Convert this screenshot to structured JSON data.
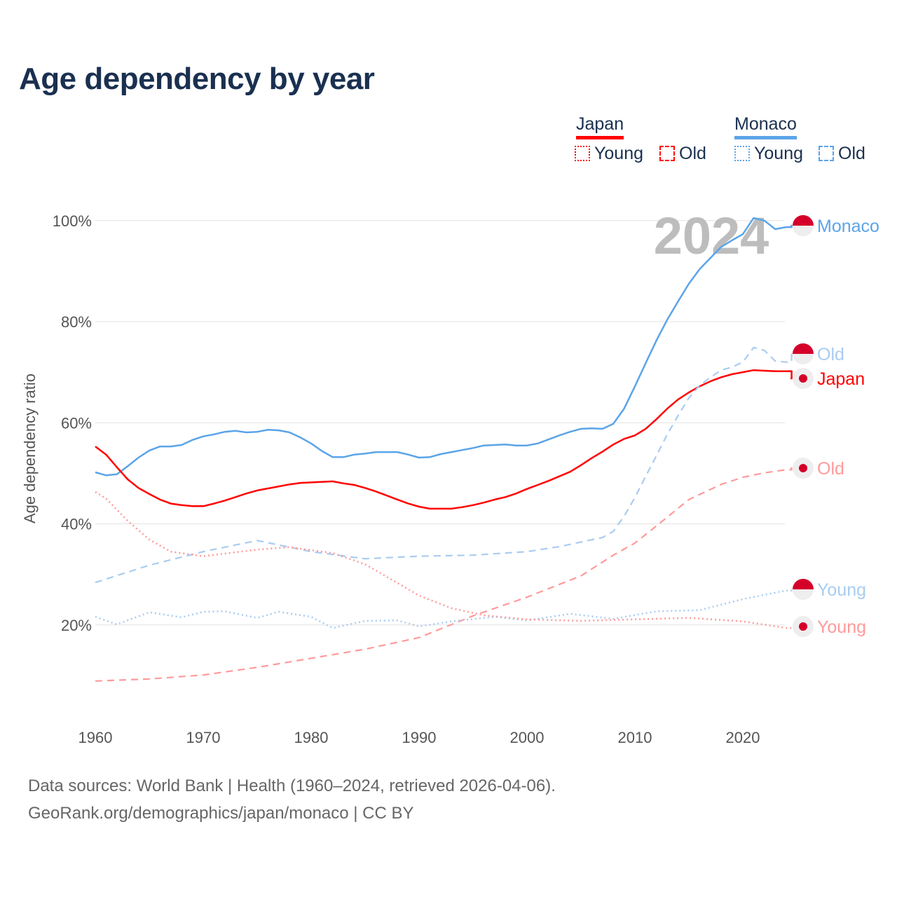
{
  "title": "Age dependency by year",
  "legend": {
    "japan": {
      "label": "Japan",
      "young": "Young",
      "old": "Old"
    },
    "monaco": {
      "label": "Monaco",
      "young": "Young",
      "old": "Old"
    }
  },
  "colors": {
    "japan": "#ff0000",
    "japan_light": "#ff9a9a",
    "monaco": "#5ba4e8",
    "monaco_light": "#a9ccf1",
    "flag_red": "#d5002a",
    "badge_bg": "#eeeeee"
  },
  "year_overlay": "2024",
  "footer": {
    "line1": "Data sources: World Bank | Health (1960–2024, retrieved 2026-04-06).",
    "line2": "GeoRank.org/demographics/japan/monaco | CC BY"
  },
  "chart_data": {
    "type": "line",
    "title": "Age dependency by year",
    "xlabel": "",
    "ylabel": "Age dependency ratio",
    "xlim": [
      1960,
      2024
    ],
    "ylim": [
      0,
      100
    ],
    "xticks": [
      "1960",
      "1970",
      "1980",
      "1990",
      "2000",
      "2010",
      "2020"
    ],
    "yticks": [
      "20%",
      "40%",
      "60%",
      "80%",
      "100%"
    ],
    "grid": true,
    "series": [
      {
        "id": "monaco_total",
        "name": "Monaco",
        "end_label": "Monaco",
        "style": "solid",
        "start": 1960,
        "values": [
          50.2,
          49.6,
          49.8,
          51.4,
          53.1,
          54.5,
          55.3,
          55.3,
          55.6,
          56.6,
          57.3,
          57.7,
          58.2,
          58.4,
          58.1,
          58.2,
          58.6,
          58.5,
          58.1,
          57.1,
          55.9,
          54.4,
          53.2,
          53.2,
          53.7,
          53.9,
          54.2,
          54.2,
          54.2,
          53.7,
          53.1,
          53.2,
          53.8,
          54.2,
          54.6,
          55.0,
          55.5,
          55.6,
          55.7,
          55.5,
          55.5,
          55.9,
          56.7,
          57.5,
          58.2,
          58.8,
          58.9,
          58.8,
          59.8,
          62.8,
          67.2,
          71.8,
          76.3,
          80.4,
          84.0,
          87.5,
          90.4,
          92.6,
          94.8,
          96.1,
          97.3,
          100.5,
          100.0,
          98.3,
          98.7
        ]
      },
      {
        "id": "japan_total",
        "name": "Japan",
        "end_label": "Japan",
        "style": "solid",
        "start": 1960,
        "values": [
          55.3,
          53.7,
          51.2,
          48.8,
          47.1,
          45.9,
          44.8,
          44.0,
          43.7,
          43.5,
          43.5,
          44.0,
          44.6,
          45.3,
          46.0,
          46.6,
          47.0,
          47.4,
          47.8,
          48.1,
          48.2,
          48.3,
          48.4,
          48.0,
          47.7,
          47.1,
          46.4,
          45.6,
          44.8,
          44.0,
          43.4,
          43.0,
          43.0,
          43.0,
          43.3,
          43.7,
          44.2,
          44.8,
          45.3,
          46.0,
          46.9,
          47.7,
          48.5,
          49.4,
          50.3,
          51.6,
          53.0,
          54.3,
          55.7,
          56.8,
          57.5,
          58.8,
          60.7,
          62.8,
          64.6,
          66.0,
          67.2,
          68.2,
          69.0,
          69.6,
          70.0,
          70.4,
          70.3,
          70.2,
          70.2
        ]
      },
      {
        "id": "monaco_old",
        "name": "Monaco Old",
        "end_label": "Old",
        "style": "dashed",
        "points": [
          [
            1960,
            28.4
          ],
          [
            1965,
            31.8
          ],
          [
            1970,
            34.5
          ],
          [
            1975,
            36.7
          ],
          [
            1980,
            34.5
          ],
          [
            1985,
            33.1
          ],
          [
            1990,
            33.6
          ],
          [
            1995,
            33.8
          ],
          [
            2000,
            34.5
          ],
          [
            2003,
            35.5
          ],
          [
            2007,
            37.3
          ],
          [
            2008,
            38.5
          ],
          [
            2009,
            41.5
          ],
          [
            2010,
            45.2
          ],
          [
            2011,
            49.4
          ],
          [
            2012,
            53.5
          ],
          [
            2013,
            57.7
          ],
          [
            2014,
            61.4
          ],
          [
            2015,
            64.9
          ],
          [
            2016,
            67.4
          ],
          [
            2017,
            69.0
          ],
          [
            2018,
            70.4
          ],
          [
            2019,
            71.0
          ],
          [
            2020,
            72.0
          ],
          [
            2021,
            74.9
          ],
          [
            2022,
            74.3
          ],
          [
            2023,
            72.2
          ],
          [
            2024,
            72.0
          ]
        ]
      },
      {
        "id": "japan_old",
        "name": "Japan Old",
        "end_label": "Old",
        "style": "dashed",
        "points": [
          [
            1960,
            8.9
          ],
          [
            1965,
            9.3
          ],
          [
            1970,
            10.1
          ],
          [
            1975,
            11.6
          ],
          [
            1980,
            13.4
          ],
          [
            1985,
            15.2
          ],
          [
            1990,
            17.5
          ],
          [
            1995,
            21.8
          ],
          [
            2000,
            25.5
          ],
          [
            2005,
            29.7
          ],
          [
            2008,
            33.8
          ],
          [
            2010,
            36.2
          ],
          [
            2012,
            39.6
          ],
          [
            2015,
            44.8
          ],
          [
            2018,
            47.8
          ],
          [
            2020,
            49.2
          ],
          [
            2022,
            50.1
          ],
          [
            2024,
            50.7
          ]
        ]
      },
      {
        "id": "monaco_young",
        "name": "Monaco Young",
        "end_label": "Young",
        "style": "dotted",
        "points": [
          [
            1960,
            21.6
          ],
          [
            1962,
            20.1
          ],
          [
            1965,
            22.5
          ],
          [
            1968,
            21.5
          ],
          [
            1970,
            22.6
          ],
          [
            1972,
            22.7
          ],
          [
            1975,
            21.4
          ],
          [
            1977,
            22.6
          ],
          [
            1980,
            21.6
          ],
          [
            1982,
            19.4
          ],
          [
            1985,
            20.8
          ],
          [
            1988,
            20.9
          ],
          [
            1990,
            19.7
          ],
          [
            1993,
            20.7
          ],
          [
            1997,
            21.6
          ],
          [
            2000,
            20.9
          ],
          [
            2004,
            22.2
          ],
          [
            2008,
            21.2
          ],
          [
            2012,
            22.7
          ],
          [
            2016,
            22.9
          ],
          [
            2020,
            25.1
          ],
          [
            2024,
            26.8
          ]
        ]
      },
      {
        "id": "japan_young",
        "name": "Japan Young",
        "end_label": "Young",
        "style": "dotted",
        "points": [
          [
            1960,
            46.3
          ],
          [
            1961,
            45.0
          ],
          [
            1963,
            40.6
          ],
          [
            1965,
            36.9
          ],
          [
            1967,
            34.5
          ],
          [
            1970,
            33.6
          ],
          [
            1975,
            34.9
          ],
          [
            1978,
            35.4
          ],
          [
            1982,
            34.2
          ],
          [
            1985,
            32.0
          ],
          [
            1988,
            28.3
          ],
          [
            1990,
            25.8
          ],
          [
            1993,
            23.3
          ],
          [
            1996,
            21.9
          ],
          [
            2000,
            21.1
          ],
          [
            2005,
            20.8
          ],
          [
            2010,
            21.1
          ],
          [
            2015,
            21.4
          ],
          [
            2020,
            20.7
          ],
          [
            2024,
            19.4
          ]
        ]
      }
    ]
  }
}
